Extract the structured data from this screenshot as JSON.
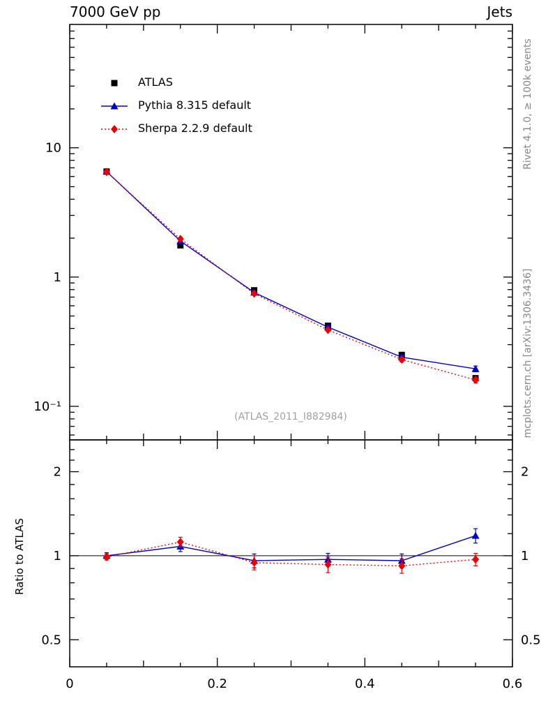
{
  "header": {
    "title_left": "7000 GeV pp",
    "title_right": "Jets"
  },
  "sidebar_right": {
    "top": "Rivet 4.1.0, ≥ 100k events",
    "bottom": "mcplots.cern.ch [arXiv:1306.3436]"
  },
  "watermark": "(ATLAS_2011_I882984)",
  "ratio_label": "Ratio to ATLAS",
  "chart_data": {
    "type": "line",
    "x": [
      0.05,
      0.15,
      0.25,
      0.35,
      0.45,
      0.55
    ],
    "xlim": [
      0,
      0.6
    ],
    "x_minor_step": 0.05,
    "x_ticks": [
      0,
      0.2,
      0.4,
      0.6
    ],
    "x_tick_labels": [
      "0",
      "0.2",
      "0.4",
      "0.6"
    ],
    "main": {
      "yscale": "log",
      "ylim": [
        0.055,
        90
      ],
      "y_ticks": [
        0.1,
        1,
        10
      ],
      "y_tick_labels": [
        "10⁻¹",
        "1",
        "10"
      ],
      "series": [
        {
          "name": "ATLAS",
          "color": "#000000",
          "marker": "square",
          "line": "none",
          "values": [
            6.55,
            1.76,
            0.79,
            0.42,
            0.25,
            0.165
          ],
          "errors": [
            0.15,
            0.05,
            0.025,
            0.015,
            0.01,
            0.008
          ]
        },
        {
          "name": "Pythia 8.315 default",
          "color": "#0000cc",
          "marker": "triangle",
          "line": "solid",
          "values": [
            6.55,
            1.9,
            0.76,
            0.41,
            0.24,
            0.195
          ],
          "errors": [
            0.1,
            0.04,
            0.02,
            0.012,
            0.009,
            0.01
          ]
        },
        {
          "name": "Sherpa 2.2.9 default",
          "color": "#ee0000",
          "marker": "diamond",
          "line": "dotted",
          "values": [
            6.5,
            1.97,
            0.745,
            0.39,
            0.23,
            0.16
          ],
          "errors": [
            0.1,
            0.04,
            0.02,
            0.012,
            0.009,
            0.008
          ]
        }
      ]
    },
    "ratio": {
      "yscale": "log",
      "ylim": [
        0.4,
        2.6
      ],
      "baseline": 1,
      "y_ticks": [
        0.5,
        1,
        2
      ],
      "y_tick_labels": [
        "0.5",
        "1",
        "2"
      ],
      "series": [
        {
          "name": "Pythia 8.315 default",
          "color": "#0000cc",
          "marker": "triangle",
          "line": "solid",
          "values": [
            1.0,
            1.08,
            0.96,
            0.97,
            0.96,
            1.18
          ],
          "errors": [
            0.025,
            0.045,
            0.055,
            0.05,
            0.055,
            0.07
          ]
        },
        {
          "name": "Sherpa 2.2.9 default",
          "color": "#ee0000",
          "marker": "diamond",
          "line": "dotted",
          "values": [
            0.99,
            1.12,
            0.945,
            0.93,
            0.92,
            0.97
          ],
          "errors": [
            0.025,
            0.045,
            0.055,
            0.06,
            0.055,
            0.05
          ]
        }
      ]
    }
  }
}
